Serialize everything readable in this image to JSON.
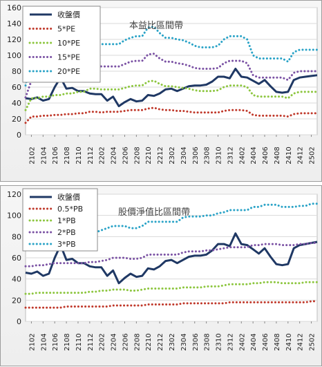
{
  "chart_data": [
    {
      "type": "line",
      "title": "本益比區間帶",
      "x": [
        "2101",
        "2102",
        "2103",
        "2104",
        "2105",
        "2106",
        "2107",
        "2108",
        "2109",
        "2110",
        "2111",
        "2112",
        "2201",
        "2202",
        "2203",
        "2204",
        "2205",
        "2206",
        "2207",
        "2208",
        "2209",
        "2210",
        "2211",
        "2212",
        "2301",
        "2302",
        "2303",
        "2304",
        "2305",
        "2306",
        "2307",
        "2308",
        "2309",
        "2310",
        "2311",
        "2312",
        "2401",
        "2402",
        "2403",
        "2404",
        "2405",
        "2406",
        "2407",
        "2408",
        "2409",
        "2410",
        "2411",
        "2412",
        "2501",
        "2502",
        "2503"
      ],
      "xticks": [
        "2102",
        "2104",
        "2106",
        "2108",
        "2110",
        "2112",
        "2202",
        "2204",
        "2206",
        "2208",
        "2210",
        "2212",
        "2302",
        "2304",
        "2306",
        "2308",
        "2310",
        "2312",
        "2402",
        "2404",
        "2406",
        "2408",
        "2410",
        "2412",
        "2502"
      ],
      "ylim": [
        0,
        160
      ],
      "yticks": [
        0,
        20,
        40,
        60,
        80,
        100,
        120,
        140,
        160
      ],
      "legend_position": "top-left",
      "series": [
        {
          "name": "收盤價",
          "color": "#1f3864",
          "style": "solid",
          "values": [
            46,
            45,
            47,
            43,
            45,
            60,
            72,
            58,
            59,
            55,
            55,
            52,
            51,
            51,
            43,
            48,
            36,
            41,
            45,
            42,
            43,
            50,
            49,
            52,
            57,
            58,
            55,
            58,
            61,
            62,
            62,
            63,
            67,
            73,
            73,
            71,
            83,
            73,
            72,
            68,
            64,
            69,
            61,
            54,
            53,
            54,
            69,
            72,
            73,
            74,
            75
          ]
        },
        {
          "name": "5*PE",
          "color": "#c0392b",
          "style": "dotted",
          "values": [
            15,
            23,
            23,
            24,
            24,
            25,
            25,
            26,
            26,
            27,
            27,
            29,
            29,
            28,
            29,
            29,
            29,
            30,
            31,
            31,
            31,
            33,
            34,
            32,
            31,
            31,
            30,
            30,
            29,
            28,
            28,
            28,
            28,
            28,
            30,
            31,
            31,
            31,
            30,
            25,
            24,
            24,
            24,
            24,
            24,
            23,
            26,
            27,
            27,
            27,
            27
          ]
        },
        {
          "name": "10*PE",
          "color": "#8dc63f",
          "style": "dotted",
          "values": [
            31,
            46,
            46,
            48,
            48,
            50,
            50,
            52,
            52,
            54,
            54,
            58,
            58,
            57,
            57,
            57,
            57,
            59,
            61,
            62,
            62,
            67,
            68,
            64,
            61,
            61,
            60,
            59,
            58,
            56,
            55,
            55,
            55,
            56,
            60,
            62,
            62,
            62,
            60,
            50,
            48,
            48,
            48,
            48,
            48,
            46,
            52,
            54,
            54,
            54,
            54
          ]
        },
        {
          "name": "15*PE",
          "color": "#7b52a4",
          "style": "dotted",
          "values": [
            47,
            68,
            68,
            72,
            72,
            75,
            75,
            78,
            78,
            80,
            80,
            87,
            87,
            86,
            86,
            86,
            86,
            89,
            92,
            93,
            93,
            101,
            102,
            96,
            92,
            92,
            90,
            89,
            87,
            84,
            83,
            83,
            83,
            84,
            90,
            93,
            93,
            93,
            90,
            75,
            72,
            72,
            72,
            72,
            72,
            69,
            78,
            80,
            80,
            80,
            80
          ]
        },
        {
          "name": "20*PE",
          "color": "#2aa3c7",
          "style": "dotted",
          "values": [
            62,
            91,
            91,
            96,
            96,
            100,
            100,
            104,
            104,
            106,
            106,
            116,
            116,
            114,
            114,
            114,
            114,
            119,
            122,
            124,
            124,
            135,
            136,
            128,
            122,
            122,
            120,
            119,
            116,
            112,
            110,
            110,
            110,
            112,
            120,
            124,
            124,
            124,
            120,
            100,
            96,
            96,
            96,
            96,
            96,
            92,
            104,
            107,
            107,
            107,
            107
          ]
        }
      ]
    },
    {
      "type": "line",
      "title": "股價淨值比區間帶",
      "x": [
        "2101",
        "2102",
        "2103",
        "2104",
        "2105",
        "2106",
        "2107",
        "2108",
        "2109",
        "2110",
        "2111",
        "2112",
        "2201",
        "2202",
        "2203",
        "2204",
        "2205",
        "2206",
        "2207",
        "2208",
        "2209",
        "2210",
        "2211",
        "2212",
        "2301",
        "2302",
        "2303",
        "2304",
        "2305",
        "2306",
        "2307",
        "2308",
        "2309",
        "2310",
        "2311",
        "2312",
        "2401",
        "2402",
        "2403",
        "2404",
        "2405",
        "2406",
        "2407",
        "2408",
        "2409",
        "2410",
        "2411",
        "2412",
        "2501",
        "2502",
        "2503"
      ],
      "xticks": [
        "2102",
        "2104",
        "2106",
        "2108",
        "2110",
        "2112",
        "2202",
        "2204",
        "2206",
        "2208",
        "2210",
        "2212",
        "2302",
        "2304",
        "2306",
        "2308",
        "2310",
        "2312",
        "2402",
        "2404",
        "2406",
        "2408",
        "2410",
        "2412",
        "2502"
      ],
      "ylim": [
        0,
        120
      ],
      "yticks": [
        0,
        20,
        40,
        60,
        80,
        100,
        120
      ],
      "legend_position": "top-left",
      "series": [
        {
          "name": "收盤價",
          "color": "#1f3864",
          "style": "solid",
          "values": [
            46,
            45,
            47,
            43,
            45,
            60,
            72,
            58,
            59,
            55,
            55,
            52,
            51,
            51,
            43,
            48,
            36,
            41,
            45,
            42,
            43,
            50,
            49,
            52,
            57,
            58,
            55,
            58,
            61,
            62,
            62,
            63,
            67,
            73,
            73,
            71,
            83,
            73,
            72,
            68,
            64,
            69,
            61,
            54,
            53,
            54,
            69,
            72,
            73,
            74,
            75
          ]
        },
        {
          "name": "0.5*PB",
          "color": "#c0392b",
          "style": "dotted",
          "values": [
            13,
            13,
            13,
            13,
            13,
            13,
            13,
            14,
            14,
            14,
            14,
            14,
            14,
            14,
            14,
            15,
            15,
            15,
            15,
            15,
            15,
            16,
            16,
            16,
            16,
            16,
            16,
            17,
            17,
            17,
            17,
            17,
            17,
            17,
            17,
            18,
            18,
            18,
            18,
            18,
            18,
            18,
            18,
            18,
            18,
            18,
            18,
            18,
            18,
            19,
            19
          ]
        },
        {
          "name": "1*PB",
          "color": "#8dc63f",
          "style": "dotted",
          "values": [
            26,
            26,
            27,
            27,
            27,
            27,
            27,
            27,
            27,
            27,
            27,
            28,
            28,
            29,
            29,
            30,
            30,
            30,
            29,
            29,
            30,
            31,
            31,
            31,
            31,
            31,
            31,
            32,
            32,
            32,
            32,
            33,
            33,
            33,
            34,
            35,
            35,
            35,
            35,
            36,
            36,
            37,
            37,
            37,
            36,
            36,
            36,
            36,
            37,
            37,
            37
          ]
        },
        {
          "name": "2*PB",
          "color": "#7b52a4",
          "style": "dotted",
          "values": [
            52,
            52,
            53,
            53,
            54,
            55,
            55,
            55,
            55,
            55,
            55,
            56,
            56,
            57,
            58,
            60,
            60,
            60,
            59,
            59,
            60,
            63,
            63,
            63,
            63,
            63,
            63,
            65,
            66,
            66,
            66,
            67,
            67,
            68,
            69,
            70,
            70,
            70,
            70,
            72,
            72,
            73,
            73,
            73,
            72,
            72,
            72,
            73,
            73,
            74,
            74
          ]
        },
        {
          "name": "3*PB",
          "color": "#2aa3c7",
          "style": "dotted",
          "values": [
            78,
            78,
            80,
            80,
            81,
            82,
            82,
            83,
            83,
            83,
            83,
            84,
            84,
            86,
            88,
            90,
            90,
            90,
            88,
            88,
            90,
            94,
            94,
            94,
            94,
            94,
            94,
            98,
            99,
            99,
            99,
            100,
            100,
            102,
            103,
            105,
            105,
            105,
            105,
            108,
            108,
            110,
            110,
            110,
            108,
            108,
            108,
            109,
            109,
            111,
            111
          ]
        }
      ]
    }
  ]
}
